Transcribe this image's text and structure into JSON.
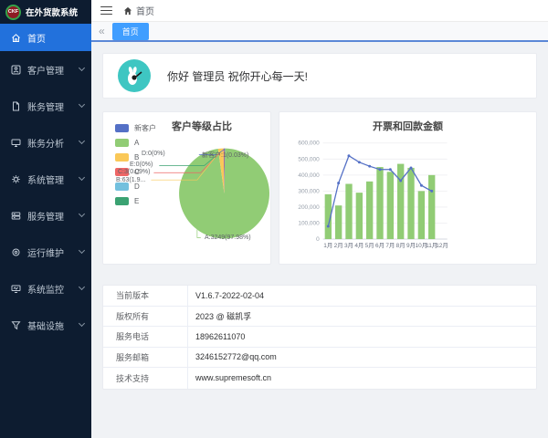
{
  "app": {
    "logo_text": "CKF",
    "title": "在外货款系统"
  },
  "sidebar": {
    "items": [
      {
        "label": "首页",
        "active": true
      },
      {
        "label": "客户管理",
        "active": false
      },
      {
        "label": "账务管理",
        "active": false
      },
      {
        "label": "账务分析",
        "active": false
      },
      {
        "label": "系统管理",
        "active": false
      },
      {
        "label": "服务管理",
        "active": false
      },
      {
        "label": "运行维护",
        "active": false
      },
      {
        "label": "系统监控",
        "active": false
      },
      {
        "label": "基础设施",
        "active": false
      }
    ]
  },
  "topbar": {
    "breadcrumb_home": "首页"
  },
  "tabbar": {
    "collapse_icon": "«",
    "active_tab": "首页"
  },
  "greeting": {
    "text": "你好 管理员 祝你开心每一天!"
  },
  "info": {
    "rows": [
      {
        "label": "当前版本",
        "value": "V1.6.7-2022-02-04"
      },
      {
        "label": "版权所有",
        "value": "2023 @ 磁凯孚"
      },
      {
        "label": "服务电话",
        "value": "18962611070"
      },
      {
        "label": "服务邮箱",
        "value": "3246152772@qq.com"
      },
      {
        "label": "技术支持",
        "value": "www.supremesoft.cn"
      }
    ]
  },
  "colors": {
    "accent": "#409eff",
    "sidebar_bg": "#0d1c30",
    "sidebar_active": "#2271dc",
    "avatar_bg": "#3ec6c2"
  },
  "chart_data": [
    {
      "type": "pie",
      "title": "客户等级占比",
      "legend": [
        "新客户",
        "A",
        "B",
        "C",
        "D",
        "E"
      ],
      "colors": [
        "#5470c6",
        "#91cc75",
        "#fac858",
        "#ee6666",
        "#73c0de",
        "#3ba272"
      ],
      "slices": [
        {
          "name": "新客户",
          "value": 1,
          "pct": 0.03
        },
        {
          "name": "A",
          "value": 3249,
          "pct": 97.98
        },
        {
          "name": "B",
          "value": 63,
          "pct": 1.9
        },
        {
          "name": "C",
          "value": 3,
          "pct": 0.09
        },
        {
          "name": "D",
          "value": 0,
          "pct": 0
        },
        {
          "name": "E",
          "value": 0,
          "pct": 0
        }
      ],
      "labels": {
        "d": "D:0(0%)",
        "new_customer": "新客户:1(0.03%)",
        "e": "E:0(0%)",
        "c": "C:3(0.09%)",
        "b": "B:63(1.9...",
        "a": "A:3249(97.98%)"
      }
    },
    {
      "type": "bar",
      "title": "开票和回款金额",
      "categories": [
        "1月",
        "2月",
        "3月",
        "4月",
        "5月",
        "6月",
        "7月",
        "8月",
        "9月",
        "10月",
        "11月",
        "12月"
      ],
      "series": [
        {
          "type": "bar",
          "color": "#91cc75",
          "values": [
            280000,
            210000,
            345000,
            290000,
            360000,
            450000,
            420000,
            470000,
            445000,
            300000,
            400000,
            0
          ]
        },
        {
          "type": "line",
          "color": "#5470c6",
          "values": [
            80000,
            350000,
            520000,
            480000,
            455000,
            435000,
            435000,
            365000,
            445000,
            335000,
            300000,
            null
          ]
        }
      ],
      "ylim": [
        0,
        600000
      ],
      "yticks": [
        "600,000",
        "500,000",
        "400,000",
        "300,000",
        "200,000",
        "100,000",
        "0"
      ],
      "grid": true,
      "legend_position": "none"
    }
  ]
}
